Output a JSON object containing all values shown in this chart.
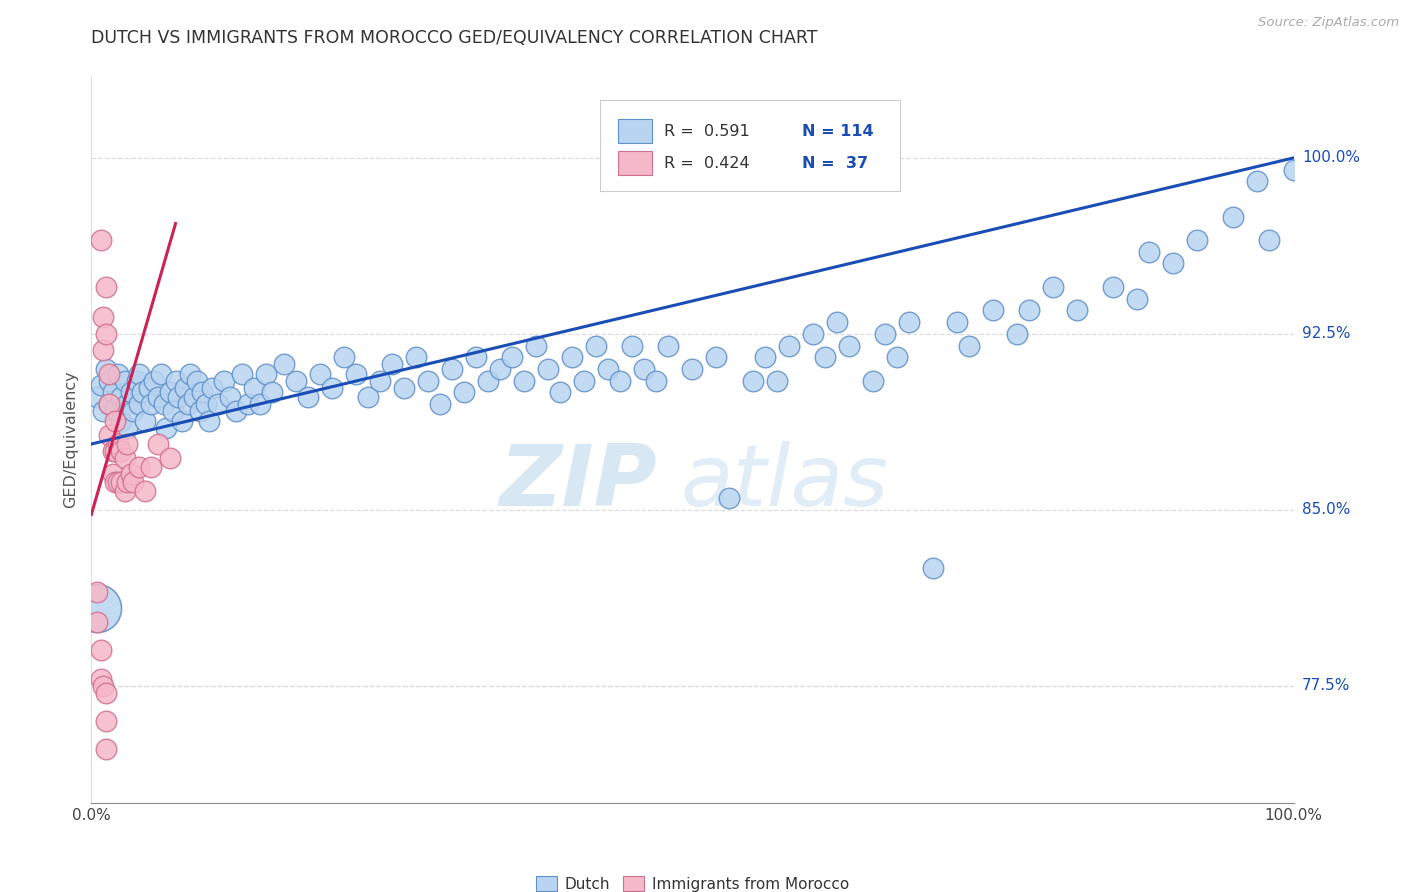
{
  "title": "DUTCH VS IMMIGRANTS FROM MOROCCO GED/EQUIVALENCY CORRELATION CHART",
  "source": "Source: ZipAtlas.com",
  "ylabel": "GED/Equivalency",
  "ytick_labels": [
    "77.5%",
    "85.0%",
    "92.5%",
    "100.0%"
  ],
  "ytick_values": [
    0.775,
    0.85,
    0.925,
    1.0
  ],
  "xmin": 0.0,
  "xmax": 1.0,
  "ymin": 0.725,
  "ymax": 1.035,
  "watermark_zip": "ZIP",
  "watermark_atlas": "atlas",
  "legend_r1": "R =  0.591",
  "legend_n1": "N = 114",
  "legend_r2": "R =  0.424",
  "legend_n2": "N =  37",
  "blue_fill": "#b8d4f0",
  "pink_fill": "#f5b8c8",
  "blue_edge": "#6090c8",
  "pink_edge": "#d07090",
  "blue_line_color": "#1a4db5",
  "pink_line_color": "#cc2255",
  "title_color": "#333333",
  "source_color": "#aaaaaa",
  "right_tick_color": "#1a4db5",
  "grid_color": "#dddddd",
  "dutch_points": [
    [
      0.005,
      0.898
    ],
    [
      0.008,
      0.903
    ],
    [
      0.01,
      0.892
    ],
    [
      0.012,
      0.91
    ],
    [
      0.015,
      0.895
    ],
    [
      0.015,
      0.905
    ],
    [
      0.018,
      0.9
    ],
    [
      0.02,
      0.893
    ],
    [
      0.022,
      0.908
    ],
    [
      0.025,
      0.898
    ],
    [
      0.025,
      0.888
    ],
    [
      0.028,
      0.905
    ],
    [
      0.03,
      0.895
    ],
    [
      0.03,
      0.885
    ],
    [
      0.033,
      0.9
    ],
    [
      0.035,
      0.892
    ],
    [
      0.038,
      0.905
    ],
    [
      0.04,
      0.895
    ],
    [
      0.04,
      0.908
    ],
    [
      0.042,
      0.9
    ],
    [
      0.045,
      0.888
    ],
    [
      0.048,
      0.902
    ],
    [
      0.05,
      0.895
    ],
    [
      0.052,
      0.905
    ],
    [
      0.055,
      0.898
    ],
    [
      0.058,
      0.908
    ],
    [
      0.06,
      0.895
    ],
    [
      0.062,
      0.885
    ],
    [
      0.065,
      0.9
    ],
    [
      0.068,
      0.892
    ],
    [
      0.07,
      0.905
    ],
    [
      0.072,
      0.898
    ],
    [
      0.075,
      0.888
    ],
    [
      0.078,
      0.902
    ],
    [
      0.08,
      0.895
    ],
    [
      0.082,
      0.908
    ],
    [
      0.085,
      0.898
    ],
    [
      0.088,
      0.905
    ],
    [
      0.09,
      0.892
    ],
    [
      0.092,
      0.9
    ],
    [
      0.095,
      0.895
    ],
    [
      0.098,
      0.888
    ],
    [
      0.1,
      0.902
    ],
    [
      0.105,
      0.895
    ],
    [
      0.11,
      0.905
    ],
    [
      0.115,
      0.898
    ],
    [
      0.12,
      0.892
    ],
    [
      0.125,
      0.908
    ],
    [
      0.13,
      0.895
    ],
    [
      0.135,
      0.902
    ],
    [
      0.14,
      0.895
    ],
    [
      0.145,
      0.908
    ],
    [
      0.15,
      0.9
    ],
    [
      0.16,
      0.912
    ],
    [
      0.17,
      0.905
    ],
    [
      0.18,
      0.898
    ],
    [
      0.19,
      0.908
    ],
    [
      0.2,
      0.902
    ],
    [
      0.21,
      0.915
    ],
    [
      0.22,
      0.908
    ],
    [
      0.23,
      0.898
    ],
    [
      0.24,
      0.905
    ],
    [
      0.25,
      0.912
    ],
    [
      0.26,
      0.902
    ],
    [
      0.27,
      0.915
    ],
    [
      0.28,
      0.905
    ],
    [
      0.29,
      0.895
    ],
    [
      0.3,
      0.91
    ],
    [
      0.31,
      0.9
    ],
    [
      0.32,
      0.915
    ],
    [
      0.33,
      0.905
    ],
    [
      0.34,
      0.91
    ],
    [
      0.35,
      0.915
    ],
    [
      0.36,
      0.905
    ],
    [
      0.37,
      0.92
    ],
    [
      0.38,
      0.91
    ],
    [
      0.39,
      0.9
    ],
    [
      0.4,
      0.915
    ],
    [
      0.41,
      0.905
    ],
    [
      0.42,
      0.92
    ],
    [
      0.43,
      0.91
    ],
    [
      0.44,
      0.905
    ],
    [
      0.45,
      0.92
    ],
    [
      0.46,
      0.91
    ],
    [
      0.47,
      0.905
    ],
    [
      0.48,
      0.92
    ],
    [
      0.5,
      0.91
    ],
    [
      0.52,
      0.915
    ],
    [
      0.53,
      0.855
    ],
    [
      0.55,
      0.905
    ],
    [
      0.56,
      0.915
    ],
    [
      0.57,
      0.905
    ],
    [
      0.58,
      0.92
    ],
    [
      0.6,
      0.925
    ],
    [
      0.61,
      0.915
    ],
    [
      0.62,
      0.93
    ],
    [
      0.63,
      0.92
    ],
    [
      0.65,
      0.905
    ],
    [
      0.66,
      0.925
    ],
    [
      0.67,
      0.915
    ],
    [
      0.68,
      0.93
    ],
    [
      0.7,
      0.825
    ],
    [
      0.72,
      0.93
    ],
    [
      0.73,
      0.92
    ],
    [
      0.75,
      0.935
    ],
    [
      0.77,
      0.925
    ],
    [
      0.78,
      0.935
    ],
    [
      0.8,
      0.945
    ],
    [
      0.82,
      0.935
    ],
    [
      0.85,
      0.945
    ],
    [
      0.87,
      0.94
    ],
    [
      0.88,
      0.96
    ],
    [
      0.9,
      0.955
    ],
    [
      0.92,
      0.965
    ],
    [
      0.95,
      0.975
    ],
    [
      0.97,
      0.99
    ],
    [
      0.98,
      0.965
    ],
    [
      1.0,
      0.995
    ]
  ],
  "dutch_large_point": [
    0.005,
    0.808
  ],
  "morocco_points": [
    [
      0.008,
      0.965
    ],
    [
      0.01,
      0.932
    ],
    [
      0.01,
      0.918
    ],
    [
      0.012,
      0.945
    ],
    [
      0.012,
      0.925
    ],
    [
      0.015,
      0.908
    ],
    [
      0.015,
      0.895
    ],
    [
      0.015,
      0.882
    ],
    [
      0.018,
      0.875
    ],
    [
      0.018,
      0.865
    ],
    [
      0.02,
      0.888
    ],
    [
      0.02,
      0.875
    ],
    [
      0.02,
      0.862
    ],
    [
      0.022,
      0.878
    ],
    [
      0.022,
      0.862
    ],
    [
      0.025,
      0.875
    ],
    [
      0.025,
      0.862
    ],
    [
      0.028,
      0.872
    ],
    [
      0.028,
      0.858
    ],
    [
      0.03,
      0.878
    ],
    [
      0.03,
      0.862
    ],
    [
      0.033,
      0.865
    ],
    [
      0.035,
      0.862
    ],
    [
      0.04,
      0.868
    ],
    [
      0.045,
      0.858
    ],
    [
      0.05,
      0.868
    ],
    [
      0.055,
      0.878
    ],
    [
      0.065,
      0.872
    ],
    [
      0.005,
      0.815
    ],
    [
      0.005,
      0.802
    ],
    [
      0.008,
      0.79
    ],
    [
      0.008,
      0.778
    ],
    [
      0.01,
      0.775
    ],
    [
      0.012,
      0.772
    ],
    [
      0.012,
      0.76
    ],
    [
      0.012,
      0.748
    ]
  ],
  "blue_line_x": [
    0.0,
    1.0
  ],
  "blue_line_y": [
    0.878,
    1.0
  ],
  "pink_line_x": [
    0.0,
    0.07
  ],
  "pink_line_y": [
    0.848,
    0.972
  ]
}
